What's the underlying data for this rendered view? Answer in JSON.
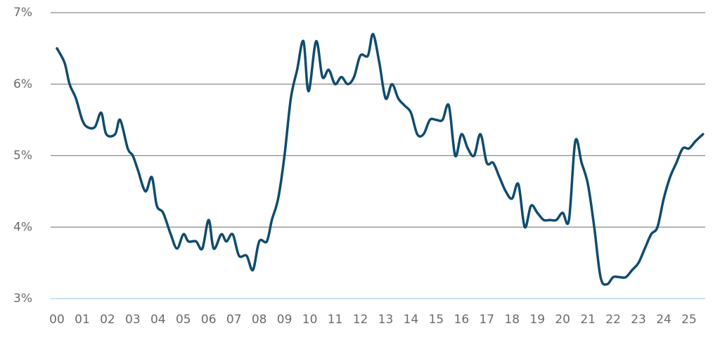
{
  "chart_data": {
    "type": "line",
    "color": "#0f4c6e",
    "x": [
      0.0,
      0.3,
      0.5,
      0.75,
      1.0,
      1.2,
      1.5,
      1.75,
      1.95,
      2.3,
      2.5,
      2.8,
      3.0,
      3.2,
      3.5,
      3.75,
      3.95,
      4.2,
      4.5,
      4.75,
      5.0,
      5.2,
      5.5,
      5.75,
      6.0,
      6.2,
      6.5,
      6.7,
      6.95,
      7.2,
      7.5,
      7.75,
      8.0,
      8.3,
      8.5,
      8.75,
      9.0,
      9.25,
      9.5,
      9.75,
      9.95,
      10.25,
      10.5,
      10.75,
      11.0,
      11.25,
      11.5,
      11.75,
      12.0,
      12.3,
      12.5,
      12.75,
      13.0,
      13.25,
      13.5,
      13.75,
      14.0,
      14.25,
      14.5,
      14.75,
      15.0,
      15.25,
      15.5,
      15.75,
      16.0,
      16.25,
      16.5,
      16.75,
      17.0,
      17.25,
      17.5,
      17.75,
      18.0,
      18.25,
      18.5,
      18.75,
      19.0,
      19.25,
      19.5,
      19.75,
      20.0,
      20.25,
      20.5,
      20.75,
      21.0,
      21.25,
      21.5,
      21.75,
      22.0,
      22.25,
      22.5,
      22.75,
      23.0,
      23.25,
      23.5,
      23.75,
      24.0,
      24.25,
      24.5,
      24.75,
      25.0,
      25.25,
      25.55
    ],
    "values": [
      6.5,
      6.3,
      6.0,
      5.8,
      5.5,
      5.4,
      5.4,
      5.6,
      5.3,
      5.3,
      5.5,
      5.1,
      5.0,
      4.8,
      4.5,
      4.7,
      4.3,
      4.2,
      3.9,
      3.7,
      3.9,
      3.8,
      3.8,
      3.7,
      4.1,
      3.7,
      3.9,
      3.8,
      3.9,
      3.6,
      3.6,
      3.4,
      3.8,
      3.8,
      4.1,
      4.4,
      5.0,
      5.8,
      6.2,
      6.6,
      5.9,
      6.6,
      6.1,
      6.2,
      6.0,
      6.1,
      6.0,
      6.1,
      6.4,
      6.4,
      6.7,
      6.3,
      5.8,
      6.0,
      5.8,
      5.7,
      5.6,
      5.3,
      5.3,
      5.5,
      5.5,
      5.5,
      5.7,
      5.0,
      5.3,
      5.1,
      5.0,
      5.3,
      4.9,
      4.9,
      4.7,
      4.5,
      4.4,
      4.6,
      4.0,
      4.3,
      4.2,
      4.1,
      4.1,
      4.1,
      4.2,
      4.1,
      5.2,
      4.9,
      4.6,
      4.0,
      3.3,
      3.2,
      3.3,
      3.3,
      3.3,
      3.4,
      3.5,
      3.7,
      3.9,
      4.0,
      4.4,
      4.7,
      4.9,
      5.1,
      5.1,
      5.2,
      5.3
    ],
    "xlim": [
      -0.25,
      25.64
    ],
    "xticks": [
      {
        "value": 0,
        "label": "00"
      },
      {
        "value": 1,
        "label": "01"
      },
      {
        "value": 2,
        "label": "02"
      },
      {
        "value": 3,
        "label": "03"
      },
      {
        "value": 4,
        "label": "04"
      },
      {
        "value": 5,
        "label": "05"
      },
      {
        "value": 6,
        "label": "06"
      },
      {
        "value": 7,
        "label": "07"
      },
      {
        "value": 8,
        "label": "08"
      },
      {
        "value": 9,
        "label": "09"
      },
      {
        "value": 10,
        "label": "10"
      },
      {
        "value": 11,
        "label": "11"
      },
      {
        "value": 12,
        "label": "12"
      },
      {
        "value": 13,
        "label": "13"
      },
      {
        "value": 14,
        "label": "14"
      },
      {
        "value": 15,
        "label": "15"
      },
      {
        "value": 16,
        "label": "16"
      },
      {
        "value": 17,
        "label": "17"
      },
      {
        "value": 18,
        "label": "18"
      },
      {
        "value": 19,
        "label": "19"
      },
      {
        "value": 20,
        "label": "20"
      },
      {
        "value": 21,
        "label": "21"
      },
      {
        "value": 22,
        "label": "22"
      },
      {
        "value": 23,
        "label": "23"
      },
      {
        "value": 24,
        "label": "24"
      },
      {
        "value": 25,
        "label": "25"
      }
    ],
    "ylim": [
      3,
      7
    ],
    "yticks": [
      {
        "value": 3,
        "label": "3%"
      },
      {
        "value": 4,
        "label": "4%"
      },
      {
        "value": 5,
        "label": "5%"
      },
      {
        "value": 6,
        "label": "6%"
      },
      {
        "value": 7,
        "label": "7%"
      }
    ],
    "grid": true
  }
}
